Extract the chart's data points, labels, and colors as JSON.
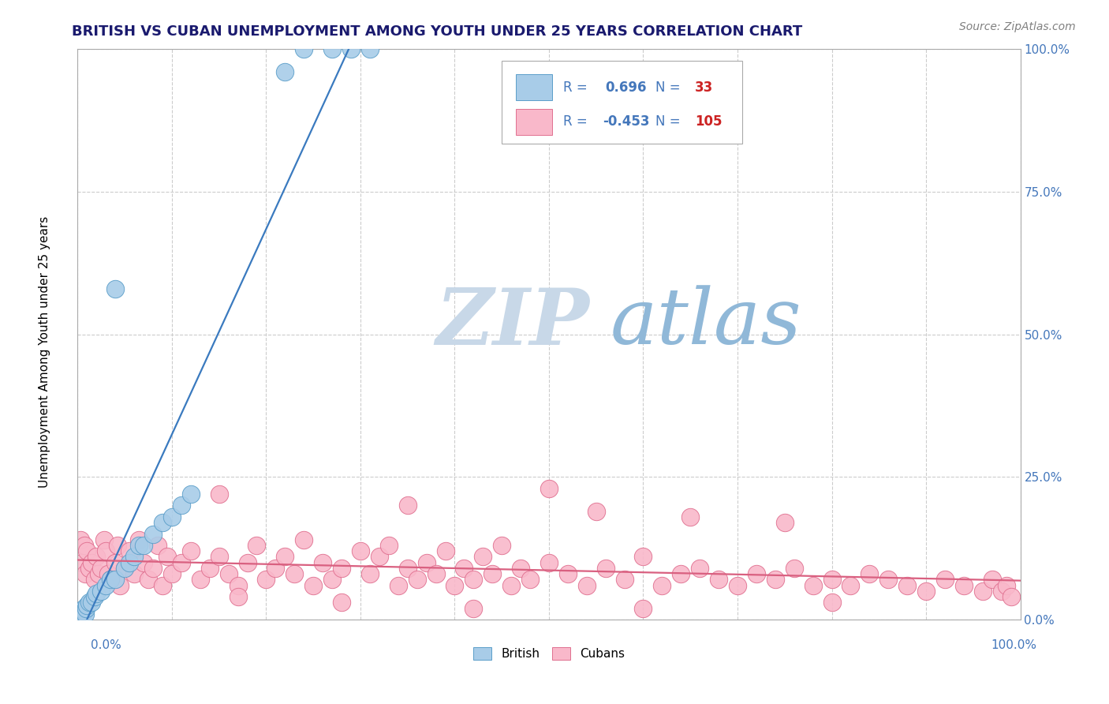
{
  "title": "BRITISH VS CUBAN UNEMPLOYMENT AMONG YOUTH UNDER 25 YEARS CORRELATION CHART",
  "source": "Source: ZipAtlas.com",
  "ylabel": "Unemployment Among Youth under 25 years",
  "xlim": [
    0,
    1
  ],
  "ylim": [
    0,
    1
  ],
  "y_tick_labels_right": [
    "0.0%",
    "25.0%",
    "50.0%",
    "75.0%",
    "100.0%"
  ],
  "y_tick_values_right": [
    0.0,
    0.25,
    0.5,
    0.75,
    1.0
  ],
  "british_R": 0.696,
  "british_N": 33,
  "cuban_R": -0.453,
  "cuban_N": 105,
  "british_color": "#a8cce8",
  "british_edge_color": "#5b9ec9",
  "cuban_color": "#f9b8ca",
  "cuban_edge_color": "#e07090",
  "trend_british_color": "#3a7abf",
  "trend_cuban_color": "#d96080",
  "watermark_color_zip": "#c8d8e8",
  "watermark_color_atlas": "#90b8d8",
  "background_color": "#ffffff",
  "grid_color": "#cccccc",
  "title_color": "#1a1a6e",
  "axis_color": "#4477bb",
  "figsize": [
    14.06,
    8.92
  ],
  "dpi": 100,
  "british_x": [
    0.002,
    0.003,
    0.004,
    0.005,
    0.006,
    0.007,
    0.008,
    0.009,
    0.01,
    0.012,
    0.015,
    0.018,
    0.02,
    0.025,
    0.03,
    0.035,
    0.04,
    0.05,
    0.055,
    0.06,
    0.065,
    0.07,
    0.08,
    0.09,
    0.1,
    0.11,
    0.12,
    0.04,
    0.22,
    0.24,
    0.27,
    0.29,
    0.31
  ],
  "british_y": [
    0.005,
    0.01,
    0.015,
    0.005,
    0.02,
    0.015,
    0.01,
    0.02,
    0.025,
    0.03,
    0.03,
    0.04,
    0.045,
    0.05,
    0.06,
    0.07,
    0.07,
    0.09,
    0.1,
    0.11,
    0.13,
    0.13,
    0.15,
    0.17,
    0.18,
    0.2,
    0.22,
    0.58,
    0.96,
    1.0,
    1.0,
    1.0,
    1.0
  ],
  "cuban_x": [
    0.003,
    0.005,
    0.007,
    0.008,
    0.01,
    0.012,
    0.015,
    0.018,
    0.02,
    0.022,
    0.025,
    0.028,
    0.03,
    0.032,
    0.035,
    0.04,
    0.042,
    0.045,
    0.05,
    0.055,
    0.06,
    0.065,
    0.07,
    0.075,
    0.08,
    0.085,
    0.09,
    0.095,
    0.1,
    0.11,
    0.12,
    0.13,
    0.14,
    0.15,
    0.16,
    0.17,
    0.18,
    0.19,
    0.2,
    0.21,
    0.22,
    0.23,
    0.24,
    0.25,
    0.26,
    0.27,
    0.28,
    0.3,
    0.31,
    0.32,
    0.33,
    0.34,
    0.35,
    0.36,
    0.37,
    0.38,
    0.39,
    0.4,
    0.41,
    0.42,
    0.43,
    0.44,
    0.45,
    0.46,
    0.47,
    0.48,
    0.5,
    0.52,
    0.54,
    0.56,
    0.58,
    0.6,
    0.62,
    0.64,
    0.66,
    0.68,
    0.7,
    0.72,
    0.74,
    0.76,
    0.78,
    0.8,
    0.82,
    0.84,
    0.86,
    0.88,
    0.9,
    0.92,
    0.94,
    0.96,
    0.97,
    0.98,
    0.985,
    0.99,
    0.15,
    0.35,
    0.55,
    0.75,
    0.5,
    0.65,
    0.17,
    0.28,
    0.42,
    0.6,
    0.8
  ],
  "cuban_y": [
    0.14,
    0.1,
    0.13,
    0.08,
    0.12,
    0.09,
    0.1,
    0.07,
    0.11,
    0.08,
    0.09,
    0.14,
    0.12,
    0.08,
    0.07,
    0.1,
    0.13,
    0.06,
    0.09,
    0.12,
    0.08,
    0.14,
    0.1,
    0.07,
    0.09,
    0.13,
    0.06,
    0.11,
    0.08,
    0.1,
    0.12,
    0.07,
    0.09,
    0.11,
    0.08,
    0.06,
    0.1,
    0.13,
    0.07,
    0.09,
    0.11,
    0.08,
    0.14,
    0.06,
    0.1,
    0.07,
    0.09,
    0.12,
    0.08,
    0.11,
    0.13,
    0.06,
    0.09,
    0.07,
    0.1,
    0.08,
    0.12,
    0.06,
    0.09,
    0.07,
    0.11,
    0.08,
    0.13,
    0.06,
    0.09,
    0.07,
    0.1,
    0.08,
    0.06,
    0.09,
    0.07,
    0.11,
    0.06,
    0.08,
    0.09,
    0.07,
    0.06,
    0.08,
    0.07,
    0.09,
    0.06,
    0.07,
    0.06,
    0.08,
    0.07,
    0.06,
    0.05,
    0.07,
    0.06,
    0.05,
    0.07,
    0.05,
    0.06,
    0.04,
    0.22,
    0.2,
    0.19,
    0.17,
    0.23,
    0.18,
    0.04,
    0.03,
    0.02,
    0.02,
    0.03
  ]
}
